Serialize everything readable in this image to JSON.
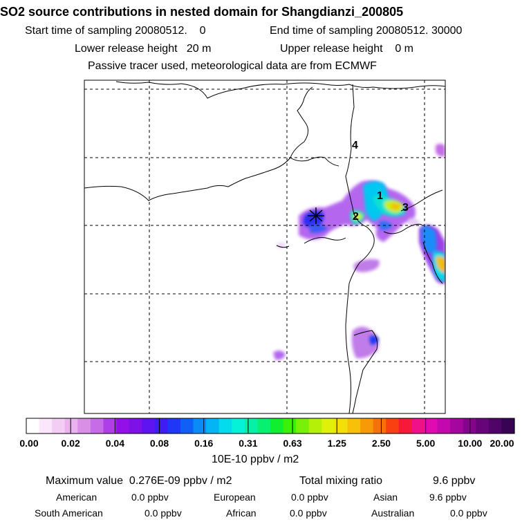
{
  "title": "SO2 source contributions in nested domain for Shangdianzi_200805",
  "sampling": {
    "start_label": "Start time of sampling",
    "start_value": "20080512.",
    "start_value2": "0",
    "end_label": "End time of sampling",
    "end_value": "20080512. 30000"
  },
  "release": {
    "lower_label": "Lower release height",
    "lower_value": "20 m",
    "upper_label": "Upper release height",
    "upper_value": "0 m"
  },
  "tracer_note": "Passive tracer used, meteorological data are from ECMWF",
  "map": {
    "region_labels": [
      "1",
      "2",
      "3",
      "4"
    ],
    "receptor_marker": "receptor-star"
  },
  "colorbar": {
    "colors": [
      "#ffffff",
      "#fbe6fb",
      "#f4cdf4",
      "#eab3ef",
      "#d98fe6",
      "#c56ce6",
      "#ad3ee8",
      "#9410e8",
      "#7d11e8",
      "#5d14f0",
      "#3f1cf5",
      "#1f38f8",
      "#1060f8",
      "#0a8cf8",
      "#05b4f4",
      "#04dcee",
      "#05f2d8",
      "#06f0a8",
      "#08f070",
      "#10ee30",
      "#3cf00a",
      "#78f008",
      "#b4f008",
      "#e0f008",
      "#f4e008",
      "#f8c008",
      "#f89a08",
      "#f87008",
      "#f84010",
      "#f81838",
      "#f0108a",
      "#e00ab0",
      "#c408b0",
      "#a4069e",
      "#86048c",
      "#68047a",
      "#500468",
      "#360452"
    ],
    "ticks": [
      "0.00",
      "0.02",
      "0.04",
      "0.08",
      "0.16",
      "0.31",
      "0.63",
      "1.25",
      "2.50",
      "5.00",
      "10.00",
      "20.00"
    ],
    "units": "10E-10 ppbv / m2"
  },
  "summary": {
    "max_label": "Maximum value",
    "max_value": "0.276E-09 ppbv / m2",
    "total_label": "Total mixing ratio",
    "total_value": "9.6 ppbv"
  },
  "regions": [
    {
      "name": "American",
      "value": "0.0 ppbv"
    },
    {
      "name": "European",
      "value": "0.0 ppbv"
    },
    {
      "name": "Asian",
      "value": "9.6 ppbv"
    },
    {
      "name": "South American",
      "value": "0.0 ppbv"
    },
    {
      "name": "African",
      "value": "0.0 ppbv"
    },
    {
      "name": "Australian",
      "value": "0.0 ppbv"
    }
  ]
}
